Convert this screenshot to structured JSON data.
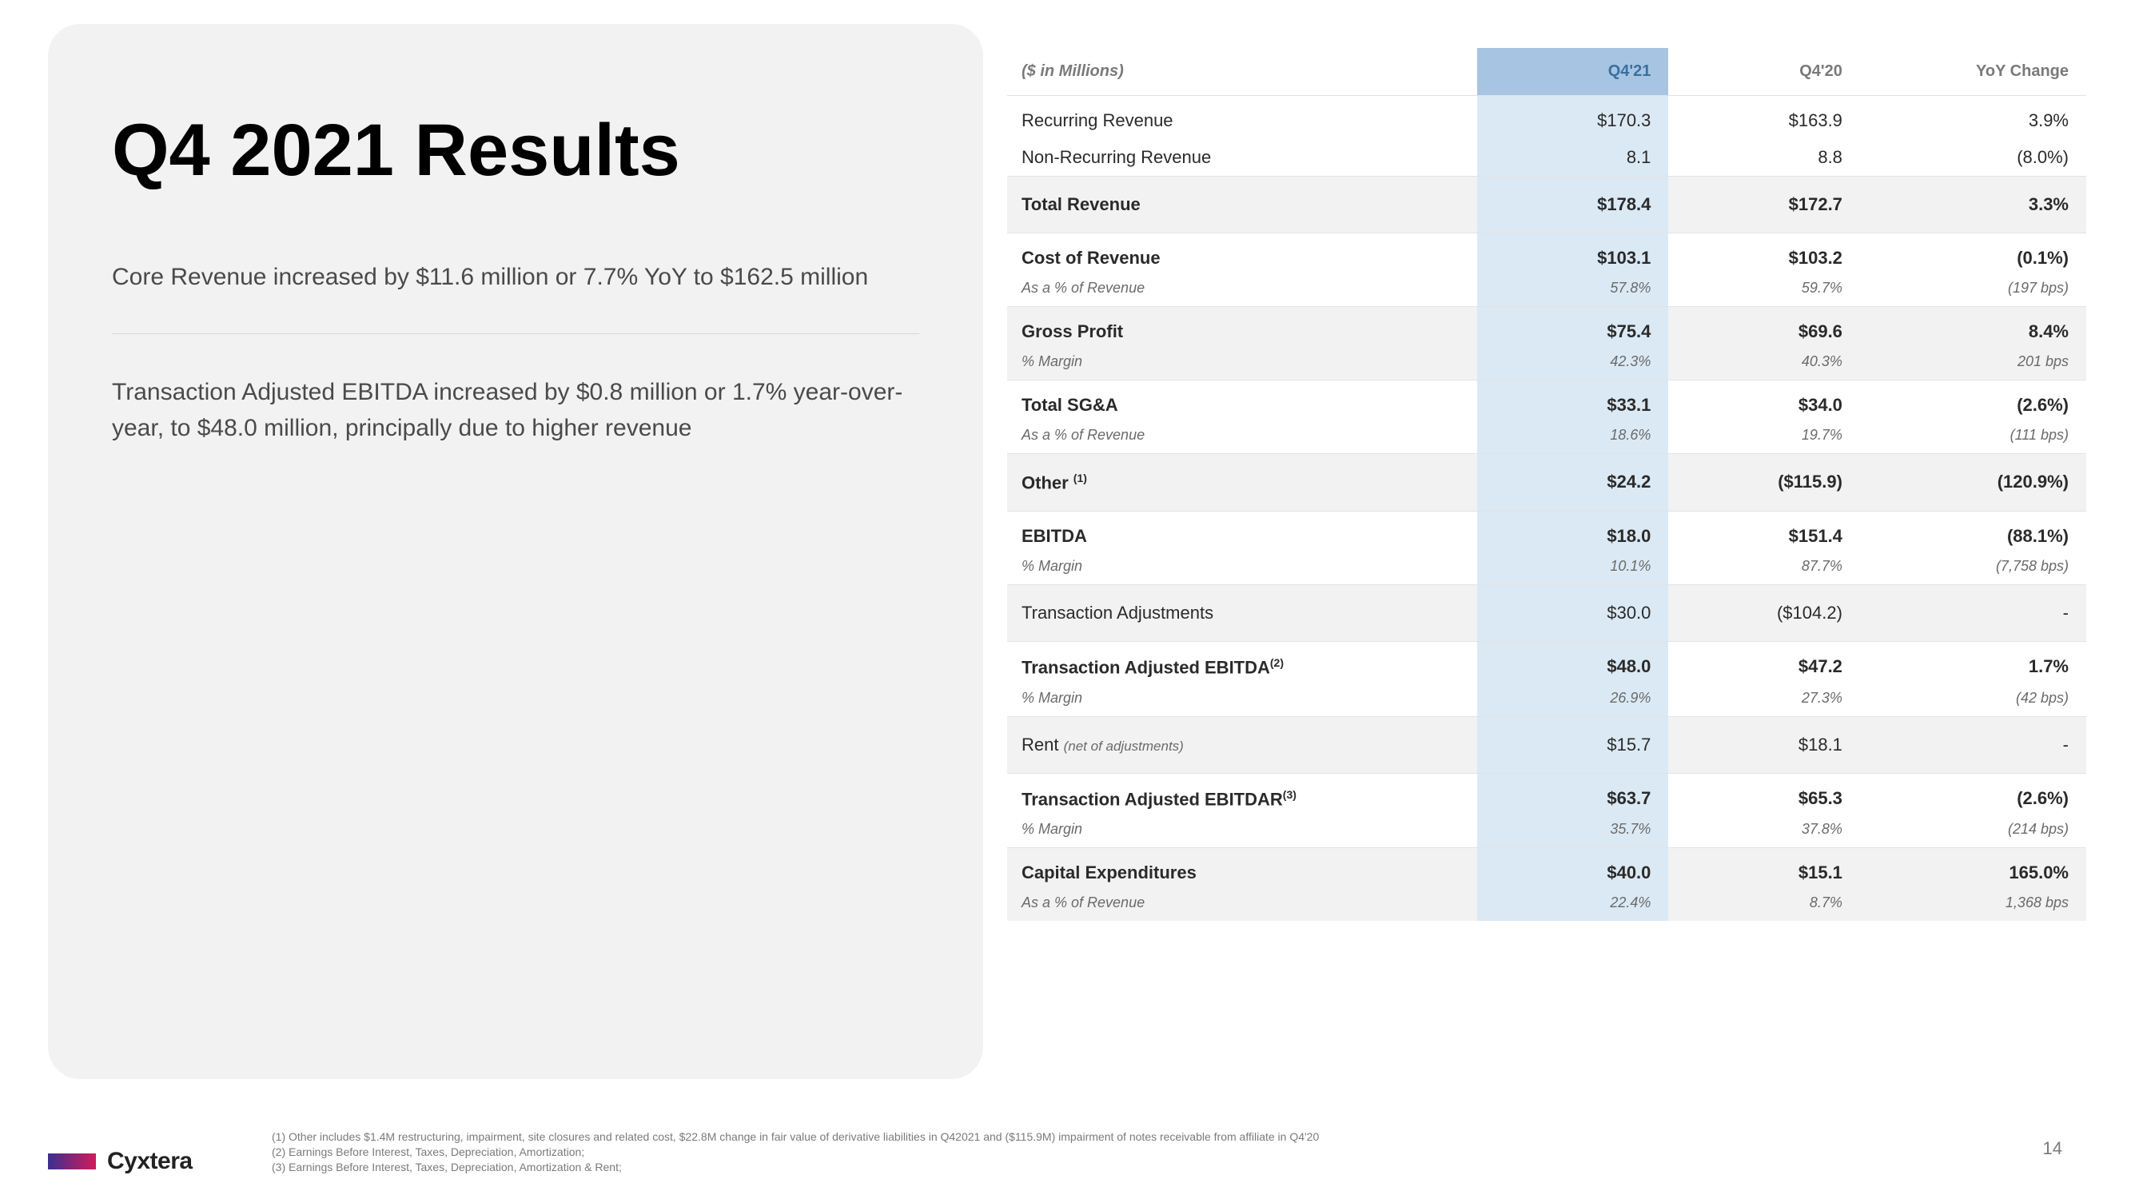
{
  "title": "Q4 2021 Results",
  "bullet1": "Core Revenue increased by $11.6 million or 7.7% YoY to $162.5 million",
  "bullet2": "Transaction Adjusted EBITDA increased by $0.8 million or 1.7% year-over-year, to $48.0 million, principally due to higher revenue",
  "table": {
    "header": {
      "label": "($ in Millions)",
      "c1": "Q4'21",
      "c2": "Q4'20",
      "c3": "YoY Change"
    },
    "rows": [
      {
        "kind": "line",
        "label": "Recurring Revenue",
        "c1": "$170.3",
        "c2": "$163.9",
        "c3": "3.9%"
      },
      {
        "kind": "line",
        "label": "Non-Recurring Revenue",
        "c1": "8.1",
        "c2": "8.8",
        "c3": "(8.0%)"
      },
      {
        "kind": "total",
        "shade": true,
        "label": "Total Revenue",
        "c1": "$178.4",
        "c2": "$172.7",
        "c3": "3.3%"
      },
      {
        "kind": "withsub",
        "label": "Cost of Revenue",
        "sub": "As a % of Revenue",
        "c1": "$103.1",
        "c2": "$103.2",
        "c3": "(0.1%)",
        "s1": "57.8%",
        "s2": "59.7%",
        "s3": "(197 bps)"
      },
      {
        "kind": "withsub",
        "shade": true,
        "label": "Gross Profit",
        "sub": "% Margin",
        "c1": "$75.4",
        "c2": "$69.6",
        "c3": "8.4%",
        "s1": "42.3%",
        "s2": "40.3%",
        "s3": "201 bps"
      },
      {
        "kind": "withsub",
        "label": "Total SG&A",
        "sub": "As a % of Revenue",
        "c1": "$33.1",
        "c2": "$34.0",
        "c3": "(2.6%)",
        "s1": "18.6%",
        "s2": "19.7%",
        "s3": "(111 bps)"
      },
      {
        "kind": "total",
        "shade": true,
        "label": "Other",
        "sup": "(1)",
        "c1": "$24.2",
        "c2": "($115.9)",
        "c3": "(120.9%)"
      },
      {
        "kind": "withsub",
        "label": "EBITDA",
        "sub": "% Margin",
        "c1": "$18.0",
        "c2": "$151.4",
        "c3": "(88.1%)",
        "s1": "10.1%",
        "s2": "87.7%",
        "s3": "(7,758 bps)"
      },
      {
        "kind": "line-shade",
        "shade": true,
        "label": "Transaction Adjustments",
        "c1": "$30.0",
        "c2": "($104.2)",
        "c3": "-"
      },
      {
        "kind": "withsub",
        "label": "Transaction Adjusted EBITDA",
        "sup": "(2)",
        "sub": "% Margin",
        "c1": "$48.0",
        "c2": "$47.2",
        "c3": "1.7%",
        "s1": "26.9%",
        "s2": "27.3%",
        "s3": "(42 bps)"
      },
      {
        "kind": "line-shade",
        "shade": true,
        "label_prefix": "Rent ",
        "note": "(net of adjustments)",
        "c1": "$15.7",
        "c2": "$18.1",
        "c3": "-"
      },
      {
        "kind": "withsub",
        "label": "Transaction Adjusted EBITDAR",
        "sup": "(3)",
        "sub": "% Margin",
        "c1": "$63.7",
        "c2": "$65.3",
        "c3": "(2.6%)",
        "s1": "35.7%",
        "s2": "37.8%",
        "s3": "(214 bps)"
      },
      {
        "kind": "withsub",
        "shade": true,
        "label": "Capital Expenditures",
        "sub": "As a % of Revenue",
        "c1": "$40.0",
        "c2": "$15.1",
        "c3": "165.0%",
        "s1": "22.4%",
        "s2": "8.7%",
        "s3": "1,368 bps"
      }
    ]
  },
  "footnotes": {
    "f1": "(1) Other includes $1.4M restructuring, impairment, site closures and related cost, $22.8M change in fair value of derivative liabilities in Q42021 and ($115.9M) impairment of notes receivable from affiliate in Q4'20",
    "f2": "(2) Earnings Before Interest, Taxes, Depreciation, Amortization;",
    "f3": "(3) Earnings Before Interest, Taxes, Depreciation, Amortization & Rent;"
  },
  "logo": "Cyxtera",
  "pagenum": "14"
}
